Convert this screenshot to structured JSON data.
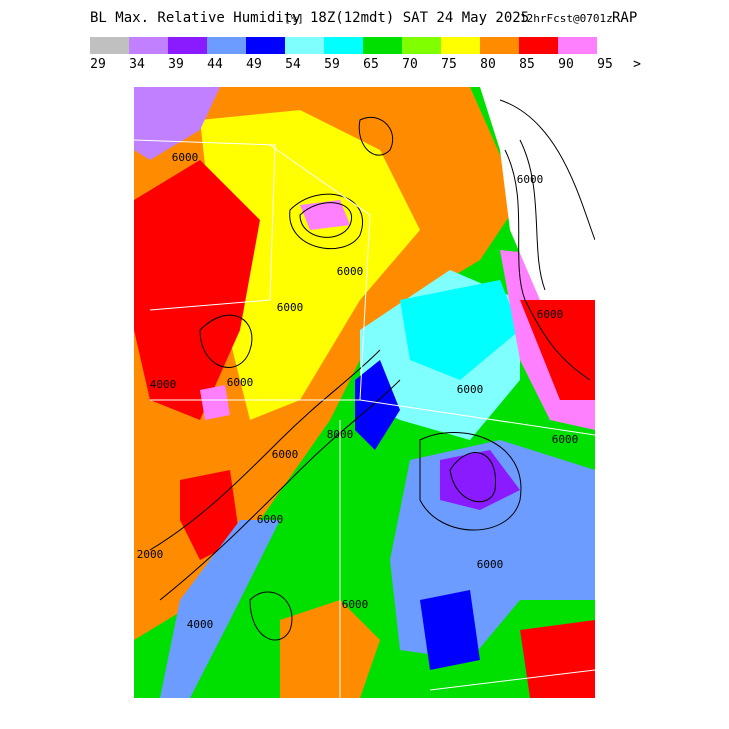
{
  "title": {
    "field": "BL Max. Relative Humidity",
    "units": "[%]",
    "time": "18Z(12mdt) SAT 24 May 2025",
    "forecast": "12hrFcst@0701z",
    "model": "RAP"
  },
  "colorbar": {
    "colors": [
      "#c0c0c0",
      "#c080ff",
      "#8a1aff",
      "#6c9cff",
      "#0000ff",
      "#80ffff",
      "#00ffff",
      "#00e000",
      "#80ff00",
      "#ffff00",
      "#ff8c00",
      "#ff0000",
      "#ff80ff"
    ],
    "labels": [
      29,
      34,
      39,
      44,
      49,
      54,
      59,
      65,
      70,
      75,
      80,
      85,
      90,
      95
    ],
    "overflow": ">"
  },
  "contour_labels": [
    "6000",
    "6000",
    "4000",
    "6000",
    "6000",
    "6000",
    "2000",
    "6000",
    "6000",
    "6000",
    "6000",
    "6000",
    "6000",
    "4000",
    "6000",
    "8000"
  ]
}
